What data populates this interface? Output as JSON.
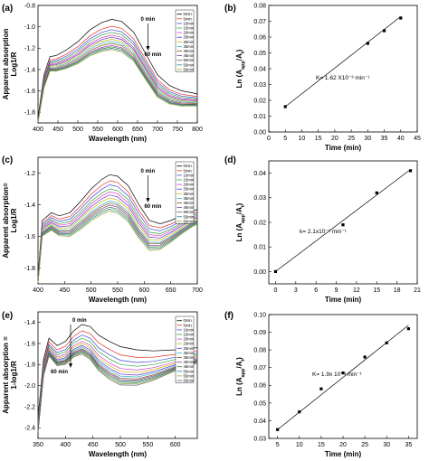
{
  "chart_data": [
    {
      "panel": "(a)",
      "type": "line",
      "xlabel": "Wavelength (nm)",
      "ylabel_line1": "Apparent absorption",
      "ylabel_line2": "Log1/R",
      "xlim": [
        400,
        800
      ],
      "ylim": [
        -1.9,
        -0.8
      ],
      "xticks": [
        400,
        450,
        500,
        550,
        600,
        650,
        700,
        750,
        800
      ],
      "yticks": [
        -0.8,
        -1.0,
        -1.2,
        -1.4,
        -1.6,
        -1.8
      ],
      "ann_top": "0 min",
      "ann_bottom": "60 min",
      "legend": [
        "0min",
        "5min",
        "10min",
        "15min",
        "20min",
        "25min",
        "30min",
        "35min",
        "40min",
        "45min",
        "50min",
        "55min",
        "60min"
      ],
      "colors": [
        "#000000",
        "#e8322b",
        "#3a4bd8",
        "#2fa33a",
        "#d43dbe",
        "#5d2ad3",
        "#c8b400",
        "#29b7c9",
        "#8b4a1c",
        "#7d3aa8",
        "#3c7a2a",
        "#1f7f8a",
        "#9aa02a"
      ],
      "offsets": [
        0,
        0.05,
        0.075,
        0.095,
        0.115,
        0.13,
        0.145,
        0.16,
        0.175,
        0.19,
        0.2,
        0.21,
        0.22
      ],
      "base_x": [
        400,
        415,
        430,
        445,
        470,
        500,
        530,
        560,
        585,
        610,
        640,
        670,
        700,
        730,
        760,
        790,
        800
      ],
      "base_y": [
        -1.85,
        -1.45,
        -1.28,
        -1.27,
        -1.22,
        -1.14,
        -1.03,
        -0.96,
        -0.93,
        -0.95,
        -1.05,
        -1.25,
        -1.45,
        -1.55,
        -1.6,
        -1.62,
        -1.63
      ]
    },
    {
      "panel": "(b)",
      "type": "scatter",
      "xlabel": "Time (min)",
      "ylabel": "Ln (A_app/A_t)",
      "xlim": [
        0,
        45
      ],
      "ylim": [
        0,
        0.08
      ],
      "xticks": [
        0,
        5,
        10,
        15,
        20,
        25,
        30,
        35,
        40,
        45
      ],
      "yticks": [
        0.0,
        0.01,
        0.02,
        0.03,
        0.04,
        0.05,
        0.06,
        0.07,
        0.08
      ],
      "x": [
        5,
        30,
        35,
        40
      ],
      "y": [
        0.016,
        0.056,
        0.064,
        0.072
      ],
      "fit": [
        [
          5,
          0.016
        ],
        [
          40,
          0.073
        ]
      ],
      "annotation": "K= 1.62 X10⁻³ min⁻¹"
    },
    {
      "panel": "(c)",
      "type": "line",
      "xlabel": "Wavelength (nm)",
      "ylabel_line1": "Apparent absorption=",
      "ylabel_line2": "Log1/R",
      "xlim": [
        400,
        700
      ],
      "ylim": [
        -1.9,
        -1.1
      ],
      "xticks": [
        400,
        450,
        500,
        550,
        600,
        650,
        700
      ],
      "yticks": [
        -1.2,
        -1.4,
        -1.6,
        -1.8
      ],
      "ann_top": "0 min",
      "ann_bottom": "60 min",
      "legend": [
        "0min",
        "5min",
        "10min",
        "15min",
        "20min",
        "25min",
        "30min",
        "35min",
        "40min",
        "45min",
        "50min",
        "55min",
        "60min"
      ],
      "colors": [
        "#000000",
        "#e8322b",
        "#3a4bd8",
        "#2fa33a",
        "#d43dbe",
        "#5d2ad3",
        "#c8b400",
        "#29b7c9",
        "#8b4a1c",
        "#7d3aa8",
        "#3c7a2a",
        "#1f7f8a",
        "#9aa02a"
      ],
      "offsets": [
        0,
        0.03,
        0.05,
        0.07,
        0.085,
        0.1,
        0.115,
        0.13,
        0.14,
        0.15,
        0.16,
        0.17,
        0.18
      ],
      "base_x": [
        400,
        408,
        425,
        440,
        460,
        480,
        500,
        520,
        535,
        550,
        570,
        590,
        610,
        630,
        650,
        670,
        690,
        700
      ],
      "base_y": [
        -1.85,
        -1.5,
        -1.45,
        -1.47,
        -1.45,
        -1.38,
        -1.3,
        -1.24,
        -1.21,
        -1.22,
        -1.28,
        -1.4,
        -1.5,
        -1.52,
        -1.5,
        -1.47,
        -1.44,
        -1.43
      ]
    },
    {
      "panel": "(d)",
      "type": "scatter",
      "xlabel": "Time (min)",
      "ylabel": "Ln (A_app/A_t)",
      "xlim": [
        -1,
        21
      ],
      "ylim": [
        -0.005,
        0.045
      ],
      "xticks": [
        0,
        3,
        6,
        9,
        12,
        15,
        18,
        21
      ],
      "yticks": [
        0.0,
        0.01,
        0.02,
        0.03,
        0.04
      ],
      "x": [
        0,
        10,
        15,
        20
      ],
      "y": [
        0.0,
        0.019,
        0.032,
        0.041
      ],
      "fit": [
        [
          0,
          0.0
        ],
        [
          20,
          0.0415
        ]
      ],
      "annotation": "k= 2.1x10⁻³ min⁻¹"
    },
    {
      "panel": "(e)",
      "type": "line",
      "xlabel": "Wavelength (nm)",
      "ylabel_line1": "Apparent absorption =",
      "ylabel_line2": "1-log1/R",
      "xlim": [
        350,
        640
      ],
      "ylim": [
        -2.5,
        -1.3
      ],
      "xticks": [
        350,
        400,
        450,
        500,
        550,
        600
      ],
      "yticks": [
        -1.4,
        -1.6,
        -1.8,
        -2.0,
        -2.2,
        -2.4
      ],
      "ann_top": "0 min",
      "ann_bottom": "60 min",
      "legend": [
        "0min",
        "5min",
        "10min",
        "15min",
        "20min",
        "23min",
        "25min",
        "30min",
        "35min",
        "40min",
        "45min",
        "50min",
        "55min",
        "60min"
      ],
      "colors": [
        "#000000",
        "#e8322b",
        "#3a4bd8",
        "#2fa33a",
        "#d43dbe",
        "#c8b400",
        "#5d2ad3",
        "#29b7c9",
        "#8b4a1c",
        "#7d3aa8",
        "#3c7a2a",
        "#1f7f8a",
        "#9aa02a",
        "#5b5b5b"
      ],
      "offsets": [
        0,
        0.06,
        0.1,
        0.13,
        0.16,
        0.18,
        0.2,
        0.215,
        0.23,
        0.24,
        0.25,
        0.26,
        0.27,
        0.28
      ],
      "base_x": [
        350,
        360,
        370,
        385,
        400,
        415,
        430,
        445,
        460,
        480,
        500,
        530,
        560,
        600,
        640
      ],
      "base_y": [
        -2.3,
        -1.75,
        -1.55,
        -1.62,
        -1.58,
        -1.48,
        -1.42,
        -1.44,
        -1.52,
        -1.58,
        -1.63,
        -1.66,
        -1.67,
        -1.66,
        -1.64
      ]
    },
    {
      "panel": "(f)",
      "type": "scatter",
      "xlabel": "Time (min)",
      "ylabel": "Ln (A_app/A_t)",
      "xlim": [
        3,
        37
      ],
      "ylim": [
        0.03,
        0.1
      ],
      "xticks": [
        5,
        10,
        15,
        20,
        25,
        30,
        35
      ],
      "yticks": [
        0.03,
        0.04,
        0.05,
        0.06,
        0.07,
        0.08,
        0.09,
        0.1
      ],
      "x": [
        5,
        10,
        15,
        20,
        25,
        30,
        35
      ],
      "y": [
        0.035,
        0.045,
        0.058,
        0.067,
        0.076,
        0.084,
        0.092
      ],
      "fit": [
        [
          5,
          0.035
        ],
        [
          35,
          0.094
        ]
      ],
      "annotation": "K= 1.9x 10⁻³ min⁻¹"
    }
  ]
}
